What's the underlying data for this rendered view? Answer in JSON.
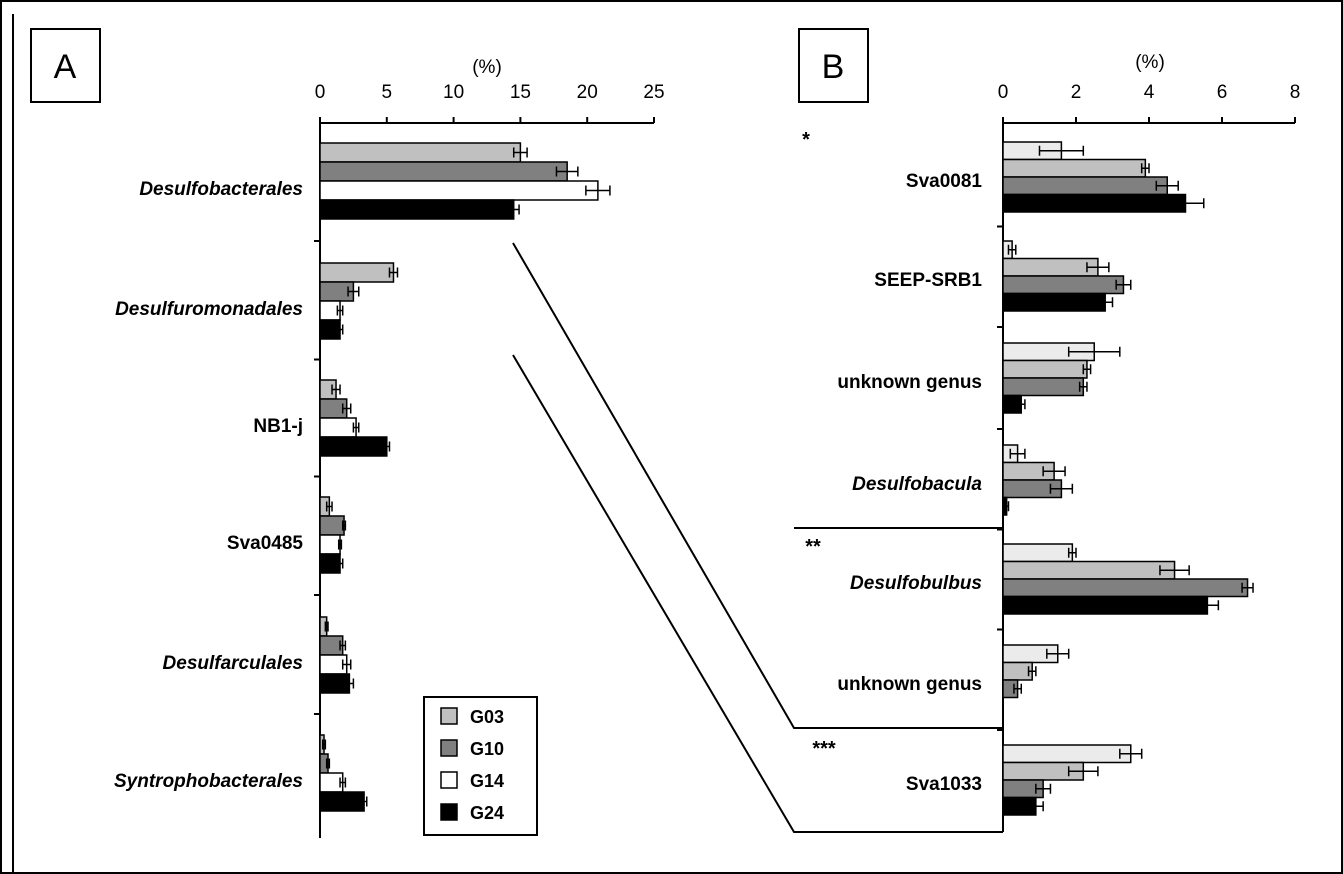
{
  "chart_data": [
    {
      "panel_label": "A",
      "type": "bar",
      "orientation": "horizontal",
      "xlabel": "(%)",
      "xlim": [
        0,
        25
      ],
      "xticks": [
        "0",
        "5",
        "10",
        "15",
        "20",
        "25"
      ],
      "grid": false,
      "legend_position": "bottom-right",
      "series_names": [
        "G03",
        "G10",
        "G14",
        "G24"
      ],
      "series_colors": [
        "#c0c0c0",
        "#808080",
        "#ffffff",
        "#000000"
      ],
      "categories": [
        {
          "label": "Desulfobacterales",
          "italic": true,
          "values": [
            15.0,
            18.5,
            20.8,
            14.5
          ],
          "errors": [
            0.5,
            0.8,
            0.9,
            0.4
          ]
        },
        {
          "label": "Desulfuromonadales",
          "italic": true,
          "values": [
            5.5,
            2.5,
            1.5,
            1.5
          ],
          "errors": [
            0.3,
            0.4,
            0.2,
            0.2
          ]
        },
        {
          "label": "NB1-j",
          "italic": false,
          "values": [
            1.2,
            2.0,
            2.7,
            5.0
          ],
          "errors": [
            0.3,
            0.3,
            0.2,
            0.2
          ]
        },
        {
          "label": "Sva0485",
          "italic": false,
          "values": [
            0.7,
            1.8,
            1.5,
            1.5
          ],
          "errors": [
            0.2,
            0.1,
            0.1,
            0.2
          ]
        },
        {
          "label": "Desulfarculales",
          "italic": true,
          "values": [
            0.5,
            1.7,
            2.0,
            2.2
          ],
          "errors": [
            0.1,
            0.2,
            0.3,
            0.3
          ]
        },
        {
          "label": "Syntrophobacterales",
          "italic": true,
          "values": [
            0.3,
            0.6,
            1.7,
            3.3
          ],
          "errors": [
            0.1,
            0.1,
            0.2,
            0.2
          ]
        }
      ]
    },
    {
      "panel_label": "B",
      "type": "bar",
      "orientation": "horizontal",
      "xlabel": "(%)",
      "xlim": [
        0,
        8
      ],
      "xticks": [
        "0",
        "2",
        "4",
        "6",
        "8"
      ],
      "grid": false,
      "series_colors": [
        "#ebebeb",
        "#c0c0c0",
        "#808080",
        "#000000"
      ],
      "groups": [
        {
          "significance": "*",
          "genera": [
            "Sva0081",
            "SEEP-SRB1",
            "unknown genus",
            "Desulfobacula"
          ]
        },
        {
          "significance": "**",
          "genera": [
            "Desulfobulbus",
            "unknown genus"
          ]
        },
        {
          "significance": "***",
          "genera": [
            "Sva1033"
          ]
        }
      ],
      "categories": [
        {
          "label": "Sva0081",
          "italic": false,
          "values": [
            1.6,
            3.9,
            4.5,
            5.0
          ],
          "errors": [
            0.6,
            0.1,
            0.3,
            0.5
          ]
        },
        {
          "label": "SEEP-SRB1",
          "italic": false,
          "values": [
            0.25,
            2.6,
            3.3,
            2.8
          ],
          "errors": [
            0.1,
            0.3,
            0.2,
            0.2
          ]
        },
        {
          "label": "unknown genus",
          "italic": false,
          "values": [
            2.5,
            2.3,
            2.2,
            0.5
          ],
          "errors": [
            0.7,
            0.1,
            0.1,
            0.1
          ]
        },
        {
          "label": "Desulfobacula",
          "italic": true,
          "values": [
            0.4,
            1.4,
            1.6,
            0.1
          ],
          "errors": [
            0.2,
            0.3,
            0.3,
            0.05
          ]
        },
        {
          "label": "Desulfobulbus",
          "italic": true,
          "values": [
            1.9,
            4.7,
            6.7,
            5.6
          ],
          "errors": [
            0.1,
            0.4,
            0.15,
            0.3
          ]
        },
        {
          "label": "unknown genus",
          "italic": false,
          "values": [
            1.5,
            0.8,
            0.4,
            0.0
          ],
          "errors": [
            0.3,
            0.1,
            0.1,
            0.0
          ]
        },
        {
          "label": "Sva1033",
          "italic": false,
          "values": [
            3.5,
            2.2,
            1.1,
            0.9
          ],
          "errors": [
            0.3,
            0.4,
            0.2,
            0.2
          ]
        }
      ]
    }
  ]
}
